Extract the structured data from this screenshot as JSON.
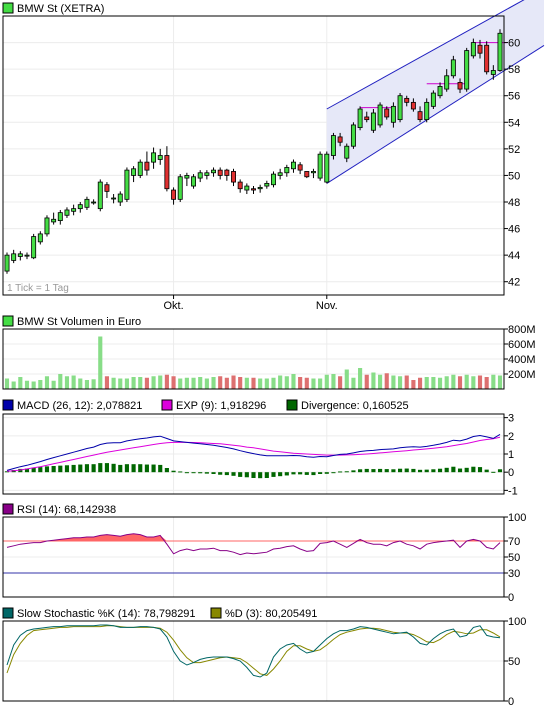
{
  "colors": {
    "up": "#44dd44",
    "down": "#e03030",
    "channel": "#2020c0",
    "channel_fill": "#e6e8f8",
    "resistance": "#cc00cc",
    "volume_up": "#88dd88",
    "volume_down": "#dd7070",
    "macd": "#0000aa",
    "exp": "#dd00dd",
    "divergence": "#006600",
    "rsi": "#880088",
    "rsi_high": "#ff6666",
    "rsi_low": "#3333aa",
    "stoch_k": "#006666",
    "stoch_d": "#888800"
  },
  "chart_data": [
    {
      "type": "candlestick",
      "legend": "BMW St (XETRA)",
      "legend_icon": "green-square-icon",
      "footnote": "1 Tick = 1 Tag",
      "x_ticks": [
        {
          "label": "Okt.",
          "index": 25
        },
        {
          "label": "Nov.",
          "index": 48
        }
      ],
      "y_ticks": [
        "42",
        "44",
        "46",
        "48",
        "50",
        "52",
        "54",
        "56",
        "58",
        "60"
      ],
      "ylim": [
        41,
        62
      ],
      "candles": [
        [
          42.8,
          44.0,
          42.6,
          44.2
        ],
        [
          43.6,
          44.1,
          43.4,
          44.4
        ],
        [
          43.9,
          44.1,
          43.6,
          44.3
        ],
        [
          44.0,
          44.0,
          43.7,
          44.2
        ],
        [
          43.8,
          45.4,
          43.7,
          45.6
        ],
        [
          45.0,
          45.6,
          44.8,
          45.8
        ],
        [
          45.6,
          46.8,
          45.4,
          47.0
        ],
        [
          46.5,
          46.7,
          46.3,
          47.2
        ],
        [
          46.6,
          47.2,
          46.3,
          47.4
        ],
        [
          47.0,
          47.4,
          46.8,
          47.6
        ],
        [
          47.3,
          47.5,
          47.0,
          47.8
        ],
        [
          47.5,
          47.8,
          47.2,
          48.0
        ],
        [
          47.6,
          48.2,
          47.4,
          48.4
        ],
        [
          48.0,
          48.0,
          47.8,
          48.2
        ],
        [
          47.5,
          49.5,
          47.3,
          49.7
        ],
        [
          49.3,
          48.8,
          48.3,
          49.5
        ],
        [
          48.3,
          48.3,
          47.9,
          48.6
        ],
        [
          48.0,
          48.6,
          47.7,
          48.8
        ],
        [
          48.2,
          50.4,
          48.0,
          50.6
        ],
        [
          50.0,
          50.5,
          49.5,
          50.7
        ],
        [
          50.0,
          51.0,
          49.8,
          51.2
        ],
        [
          51.0,
          50.4,
          50.0,
          51.8
        ],
        [
          51.0,
          51.7,
          50.5,
          52.1
        ],
        [
          51.2,
          51.5,
          50.8,
          52.0
        ],
        [
          51.5,
          49.0,
          48.8,
          52.2
        ],
        [
          48.9,
          48.2,
          47.8,
          49.1
        ],
        [
          48.2,
          49.9,
          48.0,
          50.1
        ],
        [
          49.8,
          50.0,
          49.2,
          50.2
        ],
        [
          49.2,
          49.9,
          49.0,
          50.1
        ],
        [
          49.8,
          50.2,
          49.5,
          50.4
        ],
        [
          50.0,
          50.2,
          49.7,
          50.4
        ],
        [
          50.2,
          50.4,
          49.9,
          50.6
        ],
        [
          50.4,
          50.0,
          49.7,
          50.6
        ],
        [
          50.4,
          50.0,
          49.6,
          50.5
        ],
        [
          50.3,
          49.5,
          49.2,
          50.5
        ],
        [
          49.5,
          49.0,
          48.7,
          49.7
        ],
        [
          48.9,
          49.2,
          48.6,
          49.4
        ],
        [
          49.0,
          48.9,
          48.6,
          49.2
        ],
        [
          49.0,
          49.1,
          48.7,
          49.3
        ],
        [
          49.2,
          49.4,
          49.0,
          49.6
        ],
        [
          49.3,
          50.1,
          49.1,
          50.3
        ],
        [
          50.0,
          50.2,
          49.7,
          50.5
        ],
        [
          50.2,
          50.6,
          49.9,
          50.8
        ],
        [
          50.5,
          51.0,
          50.2,
          51.2
        ],
        [
          50.8,
          50.4,
          50.1,
          51.0
        ],
        [
          50.3,
          49.9,
          49.8,
          50.3
        ],
        [
          50.2,
          50.3,
          49.8,
          50.5
        ],
        [
          49.8,
          51.6,
          49.6,
          51.8
        ],
        [
          49.5,
          51.6,
          49.4,
          51.8
        ],
        [
          51.5,
          53.0,
          51.2,
          53.2
        ],
        [
          52.9,
          52.5,
          52.2,
          53.2
        ],
        [
          51.3,
          52.2,
          51.0,
          52.4
        ],
        [
          52.2,
          53.8,
          52.0,
          54.0
        ],
        [
          53.6,
          55.0,
          53.4,
          55.2
        ],
        [
          54.4,
          54.2,
          54.0,
          54.8
        ],
        [
          53.4,
          54.7,
          53.2,
          55.0
        ],
        [
          53.8,
          55.3,
          53.6,
          55.5
        ],
        [
          55.0,
          54.4,
          54.2,
          55.2
        ],
        [
          54.0,
          55.2,
          53.6,
          55.5
        ],
        [
          54.2,
          56.0,
          54.0,
          56.2
        ],
        [
          55.8,
          55.5,
          55.2,
          56.0
        ],
        [
          55.5,
          55.0,
          54.8,
          55.8
        ],
        [
          54.8,
          54.2,
          54.0,
          55.2
        ],
        [
          54.2,
          55.5,
          54.0,
          55.8
        ],
        [
          55.2,
          56.2,
          55.0,
          56.4
        ],
        [
          56.0,
          56.7,
          55.8,
          57.0
        ],
        [
          56.5,
          57.5,
          56.3,
          58.0
        ],
        [
          57.5,
          58.7,
          57.3,
          59.0
        ],
        [
          57.0,
          56.5,
          56.2,
          57.3
        ],
        [
          56.5,
          59.4,
          56.3,
          59.6
        ],
        [
          59.0,
          60.0,
          58.8,
          60.3
        ],
        [
          59.8,
          59.2,
          58.8,
          60.2
        ],
        [
          59.8,
          57.8,
          57.6,
          60.1
        ],
        [
          57.6,
          57.9,
          57.2,
          58.3
        ],
        [
          57.9,
          60.7,
          57.8,
          61.0
        ]
      ],
      "channel_upper": [
        {
          "index": 48,
          "value": 55.0
        },
        {
          "index": 75,
          "value": 62.5
        }
      ],
      "channel_lower": [
        {
          "index": 48,
          "value": 49.4
        },
        {
          "index": 75,
          "value": 58.0
        }
      ],
      "resistance_lines": [
        {
          "from": 53,
          "to": 58,
          "value": 55.1
        },
        {
          "from": 63,
          "to": 69,
          "value": 56.9
        },
        {
          "from": 70,
          "to": 75,
          "value": 60.0
        }
      ]
    },
    {
      "type": "bar",
      "legend": "BMW St Volumen in Euro",
      "legend_icon": "green-square-icon",
      "y_ticks": [
        "200M",
        "400M",
        "600M",
        "800M"
      ],
      "ylim": [
        0,
        800
      ],
      "values": [
        140,
        100,
        160,
        110,
        100,
        120,
        170,
        110,
        200,
        170,
        180,
        140,
        120,
        130,
        700,
        170,
        150,
        140,
        140,
        160,
        160,
        150,
        170,
        180,
        190,
        170,
        140,
        150,
        150,
        160,
        140,
        160,
        170,
        150,
        180,
        160,
        150,
        150,
        140,
        140,
        150,
        180,
        170,
        200,
        160,
        150,
        140,
        140,
        190,
        200,
        170,
        260,
        150,
        280,
        190,
        220,
        190,
        210,
        180,
        170,
        180,
        120,
        150,
        160,
        160,
        150,
        170,
        190,
        170,
        190,
        170,
        180,
        160,
        190,
        180
      ]
    },
    {
      "type": "line",
      "legend_macd": "MACD (26, 12): 2,078821",
      "legend_exp": "EXP (9): 1,918296",
      "legend_div": "Divergence: 0,160525",
      "y_ticks": [
        "-1",
        "0",
        "1",
        "2",
        "3"
      ],
      "ylim": [
        -1.2,
        3.2
      ],
      "macd": [
        0.1,
        0.2,
        0.3,
        0.38,
        0.48,
        0.58,
        0.7,
        0.8,
        0.9,
        1.0,
        1.1,
        1.2,
        1.3,
        1.38,
        1.52,
        1.6,
        1.62,
        1.62,
        1.72,
        1.78,
        1.84,
        1.88,
        1.94,
        1.98,
        1.85,
        1.72,
        1.68,
        1.64,
        1.6,
        1.56,
        1.52,
        1.48,
        1.42,
        1.36,
        1.28,
        1.18,
        1.1,
        1.02,
        0.95,
        0.9,
        0.9,
        0.9,
        0.9,
        0.92,
        0.9,
        0.85,
        0.82,
        0.86,
        0.85,
        0.92,
        0.98,
        1.0,
        1.06,
        1.14,
        1.18,
        1.2,
        1.24,
        1.26,
        1.28,
        1.34,
        1.38,
        1.4,
        1.38,
        1.42,
        1.48,
        1.55,
        1.64,
        1.76,
        1.72,
        1.82,
        1.96,
        2.02,
        1.94,
        1.86,
        2.08
      ],
      "exp": [
        0.05,
        0.08,
        0.12,
        0.18,
        0.24,
        0.3,
        0.38,
        0.46,
        0.54,
        0.62,
        0.7,
        0.78,
        0.86,
        0.94,
        1.02,
        1.1,
        1.16,
        1.22,
        1.28,
        1.34,
        1.4,
        1.46,
        1.52,
        1.58,
        1.62,
        1.64,
        1.64,
        1.64,
        1.63,
        1.62,
        1.6,
        1.58,
        1.56,
        1.52,
        1.48,
        1.44,
        1.38,
        1.34,
        1.28,
        1.22,
        1.16,
        1.12,
        1.08,
        1.04,
        1.02,
        1.0,
        0.98,
        0.96,
        0.94,
        0.94,
        0.94,
        0.95,
        0.96,
        0.98,
        1.0,
        1.03,
        1.06,
        1.09,
        1.12,
        1.15,
        1.18,
        1.22,
        1.25,
        1.28,
        1.32,
        1.36,
        1.4,
        1.46,
        1.52,
        1.58,
        1.66,
        1.74,
        1.8,
        1.84,
        1.92
      ],
      "divergence": [
        0.05,
        0.12,
        0.18,
        0.2,
        0.24,
        0.28,
        0.32,
        0.34,
        0.36,
        0.38,
        0.4,
        0.42,
        0.44,
        0.44,
        0.5,
        0.5,
        0.46,
        0.4,
        0.44,
        0.44,
        0.44,
        0.42,
        0.42,
        0.4,
        0.23,
        0.08,
        0.04,
        0.0,
        -0.03,
        -0.06,
        -0.08,
        -0.1,
        -0.14,
        -0.16,
        -0.2,
        -0.26,
        -0.28,
        -0.32,
        -0.33,
        -0.32,
        -0.26,
        -0.22,
        -0.18,
        -0.12,
        -0.12,
        -0.15,
        -0.16,
        -0.1,
        -0.09,
        -0.02,
        0.04,
        0.05,
        0.1,
        0.16,
        0.18,
        0.17,
        0.18,
        0.17,
        0.16,
        0.19,
        0.2,
        0.18,
        0.13,
        0.14,
        0.16,
        0.19,
        0.24,
        0.3,
        0.2,
        0.24,
        0.3,
        0.28,
        0.14,
        0.02,
        0.16
      ]
    },
    {
      "type": "line",
      "legend": "RSI (14): 68,142938",
      "y_ticks": [
        "0",
        "30",
        "50",
        "70",
        "100"
      ],
      "ylim": [
        0,
        100
      ],
      "upper_level": 70,
      "lower_level": 30,
      "values": [
        62,
        64,
        66,
        67,
        68,
        68,
        70,
        71,
        72,
        73,
        74,
        74,
        75,
        75,
        77,
        78,
        77,
        76,
        78,
        79,
        78,
        75,
        75,
        77,
        66,
        54,
        58,
        60,
        58,
        60,
        60,
        61,
        58,
        58,
        56,
        53,
        55,
        54,
        55,
        56,
        60,
        61,
        63,
        64,
        60,
        57,
        58,
        67,
        68,
        70,
        66,
        62,
        67,
        72,
        68,
        66,
        66,
        64,
        68,
        70,
        66,
        64,
        60,
        66,
        68,
        69,
        70,
        71,
        62,
        70,
        72,
        70,
        62,
        60,
        68
      ]
    },
    {
      "type": "line",
      "legend_k": "Slow Stochastic %K (14): 78,798291",
      "legend_d": "%D (3): 80,205491",
      "y_ticks": [
        "0",
        "50",
        "100"
      ],
      "ylim": [
        0,
        100
      ],
      "k": [
        45,
        70,
        82,
        88,
        90,
        91,
        92,
        93,
        93,
        94,
        94,
        94,
        94,
        94,
        95,
        95,
        94,
        92,
        92,
        92,
        93,
        93,
        92,
        90,
        80,
        62,
        50,
        45,
        48,
        52,
        54,
        55,
        55,
        55,
        53,
        50,
        42,
        32,
        30,
        35,
        55,
        65,
        70,
        72,
        65,
        60,
        62,
        70,
        78,
        84,
        88,
        88,
        90,
        93,
        92,
        90,
        88,
        86,
        84,
        85,
        86,
        80,
        72,
        70,
        78,
        84,
        88,
        90,
        80,
        82,
        92,
        94,
        82,
        80,
        79
      ],
      "d": [
        35,
        58,
        72,
        82,
        88,
        89,
        90,
        91,
        92,
        92,
        93,
        93,
        93,
        93,
        93,
        94,
        94,
        93,
        92,
        92,
        92,
        92,
        92,
        91,
        86,
        76,
        64,
        54,
        48,
        48,
        50,
        52,
        54,
        55,
        54,
        53,
        48,
        41,
        34,
        32,
        40,
        50,
        62,
        69,
        69,
        65,
        62,
        64,
        70,
        77,
        83,
        86,
        88,
        90,
        91,
        91,
        90,
        88,
        86,
        85,
        85,
        83,
        79,
        74,
        73,
        77,
        83,
        87,
        86,
        84,
        85,
        89,
        89,
        85,
        80
      ]
    }
  ]
}
